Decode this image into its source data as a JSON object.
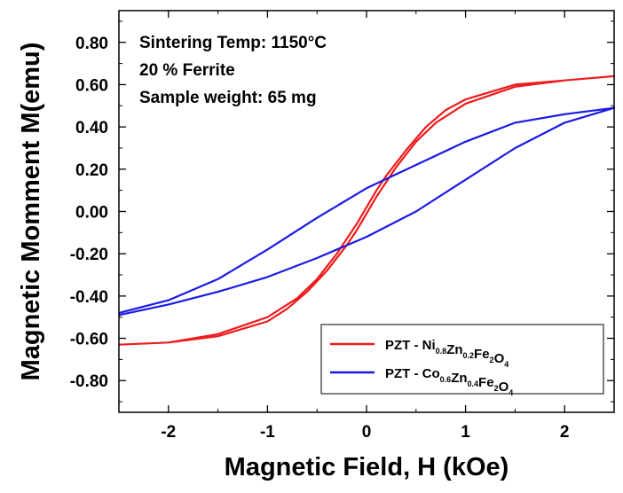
{
  "chart_data": {
    "type": "line",
    "xlabel": "Magnetic Field, H (kOe)",
    "ylabel": "Magnetic Momment M(emu)",
    "xlim": [
      -2.5,
      2.5
    ],
    "ylim": [
      -0.95,
      0.95
    ],
    "x_ticks": [
      "-2",
      "-1",
      "0",
      "1",
      "2"
    ],
    "y_ticks": [
      "-0.80",
      "-0.60",
      "-0.40",
      "-0.20",
      "0.00",
      "0.20",
      "0.40",
      "0.60",
      "0.80"
    ],
    "annotations": [
      "Sintering Temp: 1150°C",
      "20 % Ferrite",
      "Sample weight: 65 mg"
    ],
    "legend_position": "bottom-right",
    "series": [
      {
        "name": "PZT - Ni0.8Zn0.2Fe2O4",
        "legend": {
          "formula": [
            [
              "Ni",
              "0.8"
            ],
            [
              "Zn",
              "0.2"
            ],
            [
              "Fe",
              "2"
            ],
            [
              "O",
              "4"
            ]
          ],
          "prefix": "PZT - "
        },
        "color": "#ee1c1c",
        "x": [
          -2.5,
          -2.0,
          -1.5,
          -1.0,
          -0.7,
          -0.5,
          -0.3,
          -0.1,
          0.0,
          0.1,
          0.2,
          0.4,
          0.6,
          0.8,
          1.0,
          1.5,
          2.0,
          2.5,
          2.0,
          1.5,
          1.0,
          0.7,
          0.5,
          0.3,
          0.1,
          0.0,
          -0.1,
          -0.2,
          -0.4,
          -0.6,
          -0.8,
          -1.0,
          -1.5,
          -2.0,
          -2.5
        ],
        "y": [
          -0.63,
          -0.62,
          -0.58,
          -0.5,
          -0.41,
          -0.32,
          -0.2,
          -0.06,
          0.02,
          0.1,
          0.17,
          0.29,
          0.4,
          0.48,
          0.53,
          0.6,
          0.62,
          0.64,
          0.62,
          0.59,
          0.51,
          0.42,
          0.33,
          0.21,
          0.07,
          -0.01,
          -0.09,
          -0.16,
          -0.28,
          -0.38,
          -0.46,
          -0.52,
          -0.59,
          -0.62,
          -0.63
        ]
      },
      {
        "name": "PZT - Co0.6Zn0.4Fe2O4",
        "legend": {
          "formula": [
            [
              "Co",
              "0.6"
            ],
            [
              "Zn",
              "0.4"
            ],
            [
              "Fe",
              "2"
            ],
            [
              "O",
              "4"
            ]
          ],
          "prefix": "PZT - "
        },
        "color": "#1a1ae6",
        "x": [
          -2.5,
          -2.0,
          -1.5,
          -1.0,
          -0.5,
          0.0,
          0.5,
          1.0,
          1.5,
          2.0,
          2.5,
          2.0,
          1.5,
          1.0,
          0.5,
          0.0,
          -0.5,
          -1.0,
          -1.5,
          -2.0,
          -2.5
        ],
        "y": [
          -0.49,
          -0.44,
          -0.38,
          -0.31,
          -0.22,
          -0.12,
          0.0,
          0.15,
          0.3,
          0.42,
          0.49,
          0.46,
          0.42,
          0.33,
          0.22,
          0.11,
          -0.03,
          -0.18,
          -0.32,
          -0.42,
          -0.48
        ]
      }
    ]
  }
}
